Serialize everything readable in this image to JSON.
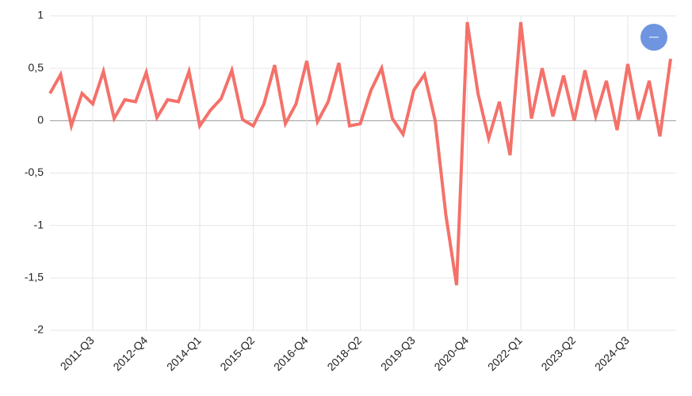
{
  "chart_data": {
    "type": "line",
    "categories": [
      null,
      null,
      null,
      null,
      "2011-Q3",
      null,
      null,
      null,
      null,
      "2012-Q4",
      null,
      null,
      null,
      null,
      "2014-Q1",
      null,
      null,
      null,
      null,
      "2015-Q2",
      null,
      null,
      null,
      null,
      "2016-Q4",
      null,
      null,
      null,
      null,
      "2018-Q2",
      null,
      null,
      null,
      null,
      "2019-Q3",
      null,
      null,
      null,
      null,
      "2020-Q4",
      null,
      null,
      null,
      null,
      "2022-Q1",
      null,
      null,
      null,
      null,
      "2023-Q2",
      null,
      null,
      null,
      null,
      "2024-Q3",
      null,
      null,
      null,
      null
    ],
    "series": [
      {
        "color": "#f4716a",
        "values": [
          0.26,
          0.44,
          -0.05,
          0.26,
          0.16,
          0.47,
          0.02,
          0.2,
          0.18,
          0.46,
          0.03,
          0.2,
          0.18,
          0.47,
          -0.05,
          0.1,
          0.21,
          0.48,
          0.01,
          -0.05,
          0.16,
          0.53,
          -0.03,
          0.16,
          0.57,
          -0.01,
          0.18,
          0.55,
          -0.05,
          -0.03,
          0.29,
          0.5,
          0.02,
          -0.13,
          0.29,
          0.44,
          0.0,
          -0.9,
          -1.57,
          0.94,
          0.26,
          -0.17,
          0.18,
          -0.33,
          0.94,
          0.02,
          0.5,
          0.04,
          0.43,
          0.0,
          0.48,
          0.04,
          0.38,
          -0.09,
          0.54,
          0.01,
          0.38,
          -0.15,
          0.59
        ]
      }
    ],
    "ylim": [
      -2,
      1
    ],
    "yticks": [
      -2,
      {
        "value": -1.5,
        "label": "-1,5"
      },
      -1,
      {
        "value": -0.5,
        "label": "-0,5"
      },
      0,
      {
        "value": 0.5,
        "label": "0,5"
      },
      1
    ],
    "grid": true
  }
}
